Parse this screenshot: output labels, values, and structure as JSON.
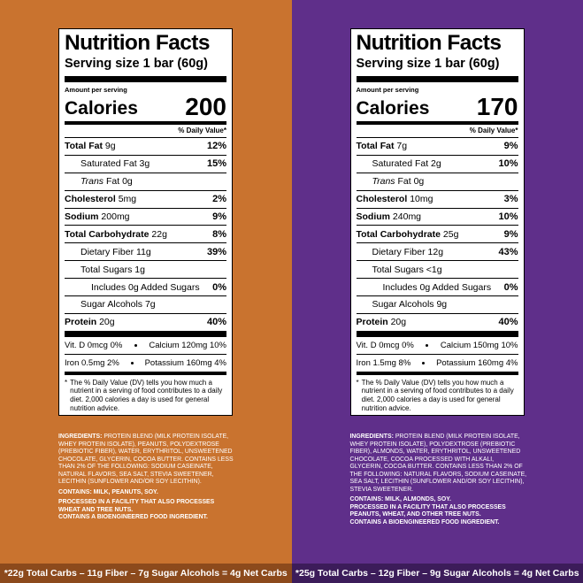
{
  "panels": [
    {
      "title": "Nutrition Facts",
      "serving": "Serving size  1 bar (60g)",
      "amount_per_serving": "Amount per serving",
      "calories_label": "Calories",
      "calories": "200",
      "dv_header": "% Daily Value*",
      "total_fat_label": "Total Fat",
      "total_fat": "9g",
      "total_fat_dv": "12%",
      "sat_fat_label": "Saturated Fat 3g",
      "sat_fat_dv": "15%",
      "trans_fat_label": "Trans",
      "trans_fat": "Fat 0g",
      "cholesterol_label": "Cholesterol",
      "cholesterol": "5mg",
      "cholesterol_dv": "2%",
      "sodium_label": "Sodium",
      "sodium": "200mg",
      "sodium_dv": "9%",
      "carb_label": "Total Carbohydrate",
      "carb": "22g",
      "carb_dv": "8%",
      "fiber_label": "Dietary Fiber 11g",
      "fiber_dv": "39%",
      "sugars_label": "Total Sugars 1g",
      "added_sugars_label": "Includes 0g Added Sugars",
      "added_sugars_dv": "0%",
      "sugar_alcohols_label": "Sugar Alcohols 7g",
      "protein_label": "Protein",
      "protein": "20g",
      "protein_dv": "40%",
      "vitd": "Vit. D 0mcg 0%",
      "calcium": "Calcium 120mg 10%",
      "iron": "Iron 0.5mg 2%",
      "potassium": "Potassium 160mg 4%",
      "footnote_star": "*",
      "footnote": "The % Daily Value (DV) tells you how much a nutrient in a serving of food contributes to a daily diet. 2,000 calories a day is used for general nutrition advice.",
      "ingredients_label": "INGREDIENTS:",
      "ingredients": "PROTEIN BLEND (MILK PROTEIN ISOLATE, WHEY PROTEIN ISOLATE), PEANUTS, POLYDEXTROSE (PREBIOTIC FIBER), WATER, ERYTHRITOL, UNSWEETENED CHOCOLATE, GLYCERIN, COCOA BUTTER. CONTAINS LESS THAN 2% OF THE FOLLOWING: SODIUM CASEINATE, NATURAL FLAVORS, SEA SALT, STEVIA SWEETENER, LECITHIN (SUNFLOWER AND/OR SOY LECITHIN).",
      "contains": "CONTAINS: MILK, PEANUTS, SOY.",
      "facility": "PROCESSED IN A FACILITY THAT ALSO PROCESSES WHEAT AND TREE NUTS.",
      "bioengineered": "CONTAINS A BIOENGINEERED FOOD INGREDIENT.",
      "net_carbs": "*22g Total Carbs – 11g Fiber – 7g Sugar Alcohols = 4g Net Carbs"
    },
    {
      "title": "Nutrition Facts",
      "serving": "Serving size  1 bar (60g)",
      "amount_per_serving": "Amount per serving",
      "calories_label": "Calories",
      "calories": "170",
      "dv_header": "% Daily Value*",
      "total_fat_label": "Total Fat",
      "total_fat": "7g",
      "total_fat_dv": "9%",
      "sat_fat_label": "Saturated Fat 2g",
      "sat_fat_dv": "10%",
      "trans_fat_label": "Trans",
      "trans_fat": "Fat 0g",
      "cholesterol_label": "Cholesterol",
      "cholesterol": "10mg",
      "cholesterol_dv": "3%",
      "sodium_label": "Sodium",
      "sodium": "240mg",
      "sodium_dv": "10%",
      "carb_label": "Total Carbohydrate",
      "carb": "25g",
      "carb_dv": "9%",
      "fiber_label": "Dietary Fiber 12g",
      "fiber_dv": "43%",
      "sugars_label": "Total Sugars <1g",
      "added_sugars_label": "Includes 0g Added Sugars",
      "added_sugars_dv": "0%",
      "sugar_alcohols_label": "Sugar Alcohols 9g",
      "protein_label": "Protein",
      "protein": "20g",
      "protein_dv": "40%",
      "vitd": "Vit. D 0mcg 0%",
      "calcium": "Calcium 150mg 10%",
      "iron": "Iron 1.5mg 8%",
      "potassium": "Potassium 160mg 4%",
      "footnote_star": "*",
      "footnote": "The % Daily Value (DV) tells you how much a nutrient in a serving of food contributes to a daily diet. 2,000 calories a day is used for general nutrition advice.",
      "ingredients_label": "INGREDIENTS:",
      "ingredients": "PROTEIN BLEND (MILK PROTEIN ISOLATE, WHEY PROTEIN ISOLATE), POLYDEXTROSE (PREBIOTIC FIBER), ALMONDS, WATER, ERYTHRITOL, UNSWEETENED CHOCOLATE, COCOA PROCESSED WITH ALKALI, GLYCERIN, COCOA BUTTER. CONTAINS LESS THAN 2% OF THE FOLLOWING: NATURAL FLAVORS, SODIUM CASEINATE, SEA SALT, LECITHIN (SUNFLOWER AND/OR SOY LECITHIN), STEVIA SWEETENER.",
      "contains": "CONTAINS: MILK, ALMONDS, SOY.",
      "facility": "PROCESSED IN A FACILITY THAT ALSO PROCESSES PEANUTS, WHEAT, AND OTHER TREE NUTS.",
      "bioengineered": "CONTAINS A BIOENGINEERED FOOD INGREDIENT.",
      "net_carbs": "*25g Total Carbs – 12g Fiber – 9g Sugar Alcohols = 4g Net Carbs"
    }
  ],
  "colors": {
    "left_bg": "#c9732f",
    "right_bg": "#5f2f8a",
    "left_bar": "#8c4a1c",
    "right_bar": "#3c1c5a"
  }
}
